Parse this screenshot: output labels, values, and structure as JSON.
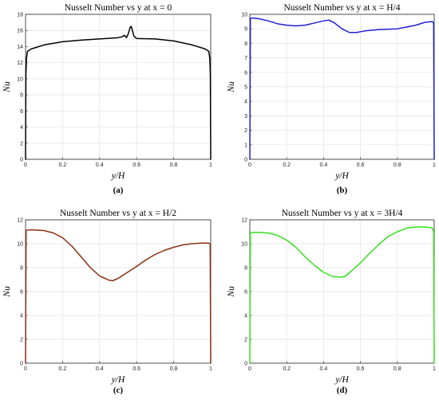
{
  "chart_data": [
    {
      "type": "line",
      "title": "Nusselt Number vs y at x = 0",
      "xlabel": "y/H",
      "ylabel": "Nu",
      "caption": "(a)",
      "xlim": [
        0,
        1
      ],
      "ylim": [
        0,
        18
      ],
      "xticks": [
        0,
        0.2,
        0.4,
        0.6,
        0.8,
        1
      ],
      "yticks": [
        0,
        2,
        4,
        6,
        8,
        10,
        12,
        14,
        16,
        18
      ],
      "grid": true,
      "color": "#000000",
      "series": [
        {
          "x": [
            0,
            0.002,
            0.005,
            0.01,
            0.03,
            0.1,
            0.2,
            0.3,
            0.4,
            0.5,
            0.52,
            0.535,
            0.545,
            0.555,
            0.565,
            0.57,
            0.575,
            0.585,
            0.6,
            0.7,
            0.8,
            0.9,
            0.97,
            0.99,
            0.995,
            0.998,
            1
          ],
          "y": [
            0,
            10.5,
            12.5,
            13.4,
            13.7,
            14.2,
            14.6,
            14.8,
            14.95,
            15.1,
            15.2,
            15.4,
            15.1,
            15.6,
            16.4,
            16.5,
            16.2,
            15.3,
            15.0,
            14.95,
            14.7,
            14.2,
            13.7,
            13.4,
            12.5,
            10.5,
            0
          ]
        }
      ]
    },
    {
      "type": "line",
      "title": "Nusselt Number vs y at x = H/4",
      "xlabel": "y/H",
      "ylabel": "Nu",
      "caption": "(b)",
      "xlim": [
        0,
        1
      ],
      "ylim": [
        0,
        10
      ],
      "xticks": [
        0,
        0.2,
        0.4,
        0.6,
        0.8,
        1
      ],
      "yticks": [
        0,
        1,
        2,
        3,
        4,
        5,
        6,
        7,
        8,
        9,
        10
      ],
      "grid": true,
      "color": "#1f1fd0",
      "series": [
        {
          "x": [
            0,
            0.003,
            0.01,
            0.05,
            0.1,
            0.15,
            0.2,
            0.25,
            0.3,
            0.35,
            0.4,
            0.43,
            0.46,
            0.5,
            0.54,
            0.58,
            0.62,
            0.7,
            0.8,
            0.9,
            0.95,
            0.99,
            0.997,
            1
          ],
          "y": [
            0,
            9.7,
            9.75,
            9.7,
            9.55,
            9.35,
            9.25,
            9.2,
            9.25,
            9.4,
            9.55,
            9.6,
            9.4,
            9.0,
            8.75,
            8.75,
            8.85,
            8.95,
            9.0,
            9.25,
            9.45,
            9.5,
            9.4,
            0
          ]
        }
      ]
    },
    {
      "type": "line",
      "title": "Nusselt Number vs y at x = H/2",
      "xlabel": "y/H",
      "ylabel": "Nu",
      "caption": "(c)",
      "xlim": [
        0,
        1
      ],
      "ylim": [
        0,
        12
      ],
      "xticks": [
        0,
        0.2,
        0.4,
        0.6,
        0.8,
        1
      ],
      "yticks": [
        0,
        2,
        4,
        6,
        8,
        10,
        12
      ],
      "grid": true,
      "color": "#8b2e10",
      "series": [
        {
          "x": [
            0,
            0.003,
            0.01,
            0.05,
            0.1,
            0.15,
            0.2,
            0.25,
            0.3,
            0.35,
            0.4,
            0.45,
            0.47,
            0.5,
            0.55,
            0.6,
            0.65,
            0.7,
            0.75,
            0.8,
            0.85,
            0.9,
            0.95,
            0.99,
            0.997,
            1
          ],
          "y": [
            0,
            11.1,
            11.15,
            11.15,
            11.1,
            10.9,
            10.5,
            9.8,
            8.9,
            8.0,
            7.3,
            6.95,
            6.9,
            7.1,
            7.6,
            8.1,
            8.65,
            9.1,
            9.45,
            9.7,
            9.9,
            10.0,
            10.05,
            10.05,
            10.0,
            0
          ]
        }
      ]
    },
    {
      "type": "line",
      "title": "Nusselt Number vs y at x = 3H/4",
      "xlabel": "y/H",
      "ylabel": "Nu",
      "caption": "(d)",
      "xlim": [
        0,
        1
      ],
      "ylim": [
        0,
        12
      ],
      "xticks": [
        0,
        0.2,
        0.4,
        0.6,
        0.8,
        1
      ],
      "yticks": [
        0,
        2,
        4,
        6,
        8,
        10,
        12
      ],
      "grid": true,
      "color": "#33e01a",
      "series": [
        {
          "x": [
            0,
            0.003,
            0.01,
            0.05,
            0.1,
            0.15,
            0.2,
            0.25,
            0.3,
            0.35,
            0.4,
            0.45,
            0.5,
            0.52,
            0.55,
            0.6,
            0.65,
            0.7,
            0.75,
            0.8,
            0.85,
            0.9,
            0.95,
            0.98,
            0.99,
            0.997,
            1
          ],
          "y": [
            0,
            10.9,
            10.95,
            10.95,
            10.9,
            10.7,
            10.3,
            9.7,
            8.9,
            8.2,
            7.6,
            7.25,
            7.2,
            7.3,
            7.7,
            8.4,
            9.2,
            9.95,
            10.6,
            11.0,
            11.3,
            11.4,
            11.4,
            11.35,
            11.3,
            11.0,
            0
          ]
        }
      ]
    }
  ]
}
